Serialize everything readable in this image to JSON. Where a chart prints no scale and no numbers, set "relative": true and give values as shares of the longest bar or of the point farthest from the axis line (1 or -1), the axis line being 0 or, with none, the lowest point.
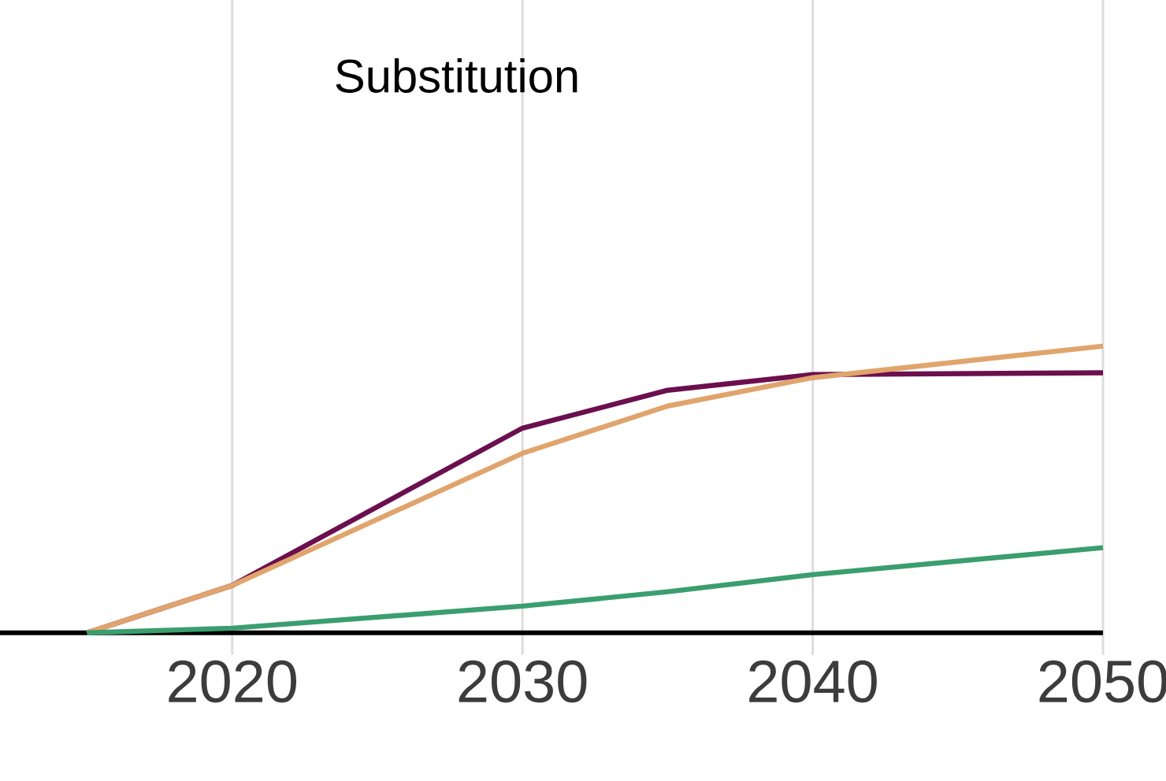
{
  "chart_data": {
    "type": "line",
    "title": "Substitution",
    "relative": true,
    "x": [
      2015,
      2020,
      2030,
      2035,
      2040,
      2050
    ],
    "series": [
      {
        "color": "#6b0f4f",
        "values": [
          0,
          0.165,
          0.714,
          0.846,
          0.901,
          0.907
        ]
      },
      {
        "color": "#e0a46c",
        "values": [
          0,
          0.165,
          0.626,
          0.791,
          0.89,
          1
        ]
      },
      {
        "color": "#3a9e6e",
        "values": [
          0,
          0.016,
          0.093,
          0.143,
          0.203,
          0.297
        ]
      }
    ],
    "xlim": [
      2012,
      2050
    ],
    "xticks": [
      2020,
      2030,
      2040,
      2050
    ],
    "grid": "x"
  }
}
